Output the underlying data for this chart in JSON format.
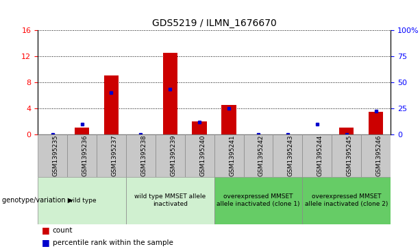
{
  "title": "GDS5219 / ILMN_1676670",
  "samples": [
    "GSM1395235",
    "GSM1395236",
    "GSM1395237",
    "GSM1395238",
    "GSM1395239",
    "GSM1395240",
    "GSM1395241",
    "GSM1395242",
    "GSM1395243",
    "GSM1395244",
    "GSM1395245",
    "GSM1395246"
  ],
  "counts": [
    0,
    1,
    9,
    0,
    12.5,
    2,
    4.5,
    0,
    0,
    0,
    1,
    3.5
  ],
  "percentiles": [
    0,
    10,
    40,
    0,
    43,
    12,
    25,
    0,
    0,
    10,
    0,
    22
  ],
  "ylim_left": [
    0,
    16
  ],
  "ylim_right": [
    0,
    100
  ],
  "yticks_left": [
    0,
    4,
    8,
    12,
    16
  ],
  "yticks_right": [
    0,
    25,
    50,
    75,
    100
  ],
  "ytick_labels_right": [
    "0",
    "25",
    "50",
    "75",
    "100%"
  ],
  "bar_color": "#cc0000",
  "dot_color": "#0000cc",
  "bg_color": "#ffffff",
  "tick_bg_color": "#c8c8c8",
  "genotype_groups": [
    {
      "label": "wild type",
      "start": 0,
      "end": 3,
      "bg": "#d0f0d0"
    },
    {
      "label": "wild type MMSET allele\ninactivated",
      "start": 3,
      "end": 6,
      "bg": "#d0f0d0"
    },
    {
      "label": "overexpressed MMSET\nallele inactivated (clone 1)",
      "start": 6,
      "end": 9,
      "bg": "#66cc66"
    },
    {
      "label": "overexpressed MMSET\nallele inactivated (clone 2)",
      "start": 9,
      "end": 12,
      "bg": "#66cc66"
    }
  ],
  "genotype_label": "genotype/variation",
  "legend_count": "count",
  "legend_percentile": "percentile rank within the sample",
  "title_fontsize": 10,
  "tick_fontsize": 6.5,
  "legend_fontsize": 7.5,
  "genotype_fontsize": 7
}
